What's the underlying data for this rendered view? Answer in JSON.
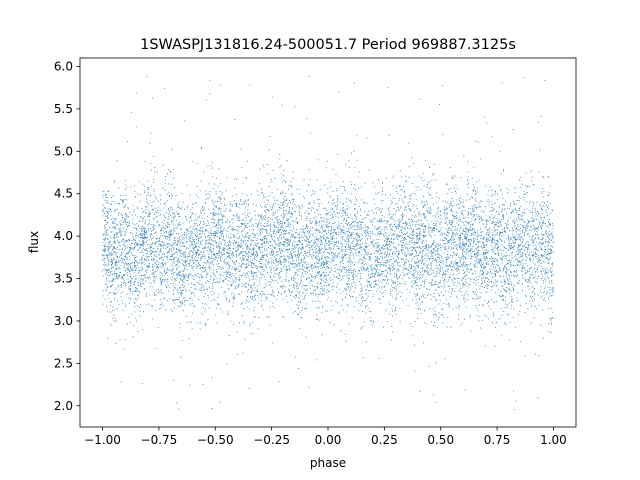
{
  "chart_data": {
    "type": "scatter",
    "title": "1SWASPJ131816.24-500051.7 Period 969887.3125s",
    "xlabel": "phase",
    "ylabel": "flux",
    "xlim": [
      -1.1,
      1.1
    ],
    "ylim": [
      1.75,
      6.1
    ],
    "x_ticks": [
      -1.0,
      -0.75,
      -0.5,
      -0.25,
      0.0,
      0.25,
      0.5,
      0.75,
      1.0
    ],
    "x_tick_labels": [
      "−1.00",
      "−0.75",
      "−0.50",
      "−0.25",
      "0.00",
      "0.25",
      "0.50",
      "0.75",
      "1.00"
    ],
    "y_ticks": [
      2.0,
      2.5,
      3.0,
      3.5,
      4.0,
      4.5,
      5.0,
      5.5,
      6.0
    ],
    "y_tick_labels": [
      "2.0",
      "2.5",
      "3.0",
      "3.5",
      "4.0",
      "4.5",
      "5.0",
      "5.5",
      "6.0"
    ],
    "grid": false,
    "marker_color": "#1f77b4",
    "series": [
      {
        "point_count": 9000,
        "x_range": [
          -1.0,
          1.0
        ],
        "typical_y": 3.85,
        "y_spread": 0.35,
        "y_min": 1.95,
        "y_max": 5.9
      }
    ]
  }
}
